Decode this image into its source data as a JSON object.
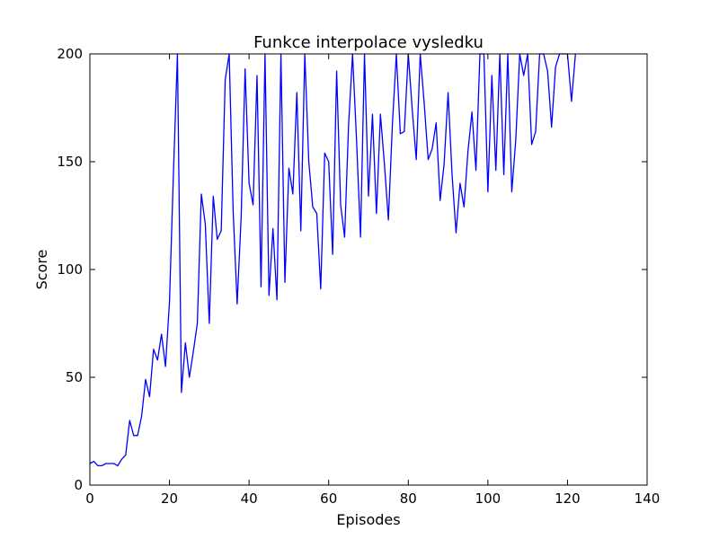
{
  "chart_data": {
    "type": "line",
    "title": "Funkce interpolace vysledku",
    "xlabel": "Episodes",
    "ylabel": "Score",
    "xlim": [
      0,
      140
    ],
    "ylim": [
      0,
      200
    ],
    "xticks": [
      0,
      20,
      40,
      60,
      80,
      100,
      120,
      140
    ],
    "yticks": [
      0,
      50,
      100,
      150,
      200
    ],
    "grid": false,
    "line_color": "#0000ff",
    "series": [
      {
        "x": [
          0,
          1,
          2,
          3,
          4,
          5,
          6,
          7,
          8,
          9,
          10,
          11,
          12,
          13,
          14,
          15,
          16,
          17,
          18,
          19,
          20,
          21,
          22,
          23,
          24,
          25,
          26,
          27,
          28,
          29,
          30,
          31,
          32,
          33,
          34,
          35,
          36,
          37,
          38,
          39,
          40,
          41,
          42,
          43,
          44,
          45,
          46,
          47,
          48,
          49,
          50,
          51,
          52,
          53,
          54,
          55,
          56,
          57,
          58,
          59,
          60,
          61,
          62,
          63,
          64,
          65,
          66,
          67,
          68,
          69,
          70,
          71,
          72,
          73,
          74,
          75,
          76,
          77,
          78,
          79,
          80,
          81,
          82,
          83,
          84,
          85,
          86,
          87,
          88,
          89,
          90,
          91,
          92,
          93,
          94,
          95,
          96,
          97,
          98,
          99,
          100,
          101,
          102,
          103,
          104,
          105,
          106,
          107,
          108,
          109,
          110,
          111,
          112,
          113,
          114,
          115,
          116,
          117,
          118,
          119,
          120,
          121,
          122
        ],
        "y": [
          10,
          11,
          9,
          9,
          10,
          10,
          10,
          9,
          12,
          14,
          30,
          23,
          23,
          32,
          49,
          41,
          63,
          58,
          70,
          55,
          85,
          145,
          200,
          43,
          66,
          50,
          62,
          75,
          135,
          121,
          75,
          134,
          114,
          118,
          188,
          200,
          127,
          84,
          124,
          193,
          140,
          130,
          190,
          92,
          200,
          88,
          119,
          86,
          200,
          94,
          147,
          135,
          182,
          118,
          200,
          150,
          129,
          126,
          91,
          154,
          150,
          107,
          192,
          130,
          115,
          167,
          200,
          160,
          115,
          200,
          134,
          172,
          126,
          172,
          149,
          123,
          167,
          200,
          163,
          164,
          200,
          174,
          151,
          200,
          177,
          151,
          156,
          168,
          132,
          149,
          182,
          144,
          117,
          140,
          129,
          155,
          173,
          146,
          200,
          200,
          136,
          190,
          146,
          200,
          144,
          200,
          136,
          160,
          200,
          190,
          200,
          158,
          164,
          200,
          200,
          192,
          166,
          194,
          200,
          200,
          200,
          178,
          200
        ]
      }
    ]
  }
}
